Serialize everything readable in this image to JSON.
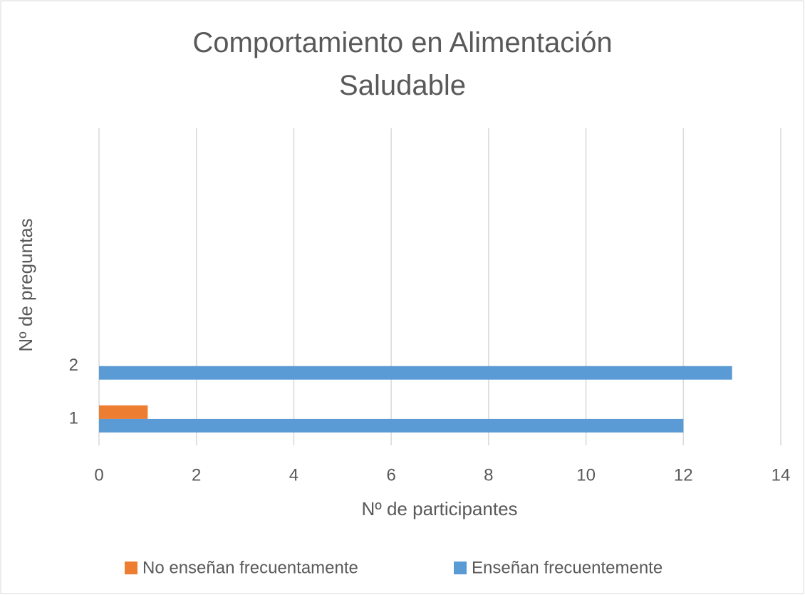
{
  "chart_data": {
    "type": "hbar",
    "title": "Comportamiento en Alimentación Saludable",
    "xlabel": "Nº de participantes",
    "ylabel": "Nº de preguntas",
    "categories": [
      "1",
      "2",
      null,
      null,
      null,
      null
    ],
    "series": [
      {
        "name": "No enseñan frecuentamente",
        "color": "#ed7d31",
        "values": [
          1,
          0,
          null,
          null,
          null,
          null
        ]
      },
      {
        "name": "Enseñan frecuentemente",
        "color": "#5b9bd5",
        "values": [
          12,
          13,
          null,
          null,
          null,
          null
        ]
      }
    ],
    "xlim": [
      0,
      14
    ],
    "xticks": [
      0,
      2,
      4,
      6,
      8,
      10,
      12,
      14
    ],
    "grid": true,
    "legend": "bottom"
  }
}
